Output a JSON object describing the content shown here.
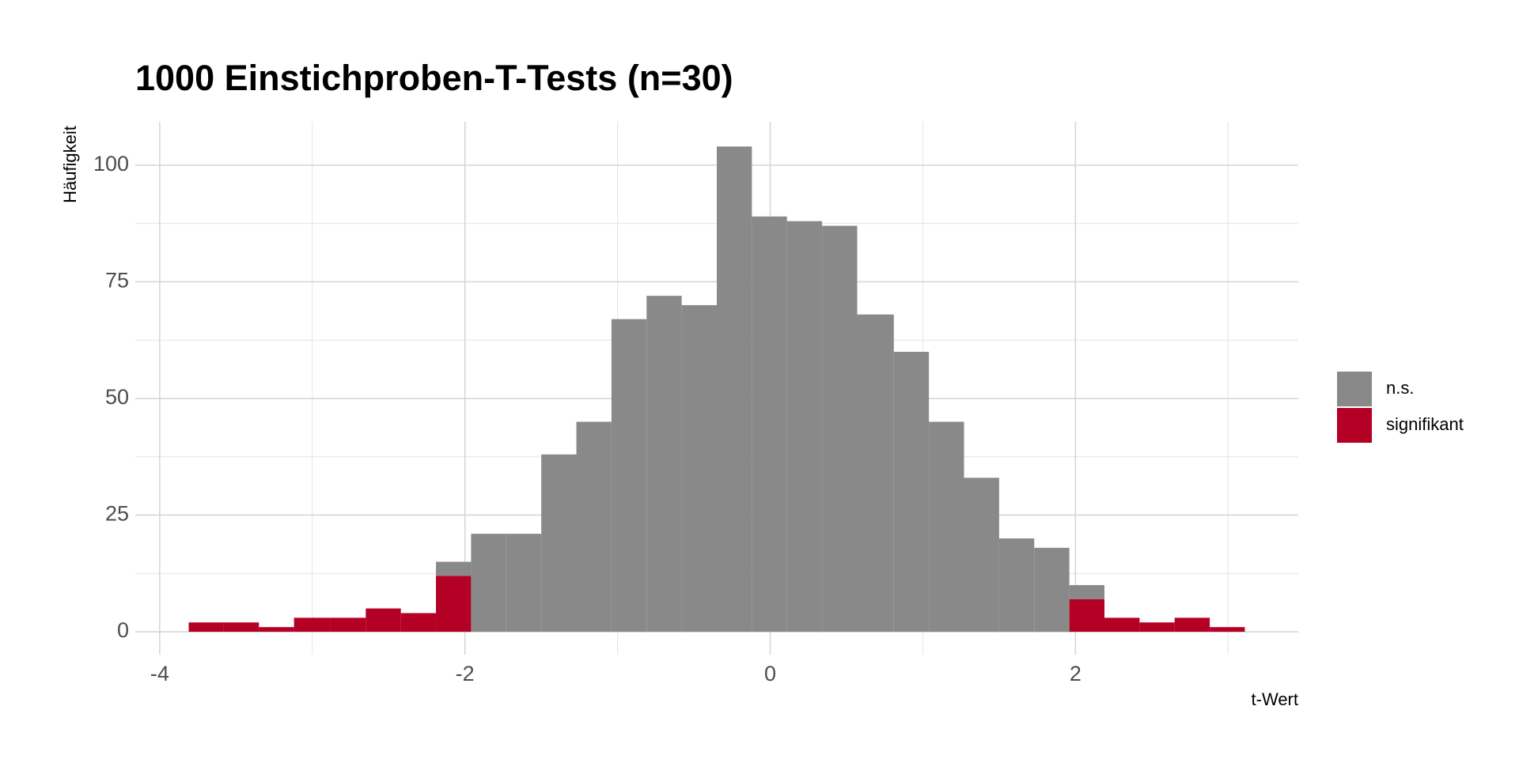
{
  "chart_data": {
    "type": "histogram",
    "title": "1000 Einstichproben-T-Tests (n=30)",
    "x_label": "t-Wert",
    "y_label": "Häufigkeit",
    "bins": [
      -3.81,
      -3.58,
      -3.35,
      -3.12,
      -2.88,
      -2.65,
      -2.42,
      -2.19,
      -1.96,
      -1.73,
      -1.5,
      -1.27,
      -1.04,
      -0.81,
      -0.58,
      -0.35,
      -0.12,
      0.11,
      0.34,
      0.57,
      0.81,
      1.04,
      1.27,
      1.5,
      1.73,
      1.96,
      2.19,
      2.42,
      2.65,
      2.88,
      3.11
    ],
    "series": [
      {
        "name": "n.s.",
        "color": "#898989",
        "values": [
          0,
          0,
          0,
          0,
          0,
          0,
          0,
          3,
          21,
          21,
          38,
          45,
          67,
          72,
          70,
          104,
          89,
          88,
          87,
          68,
          60,
          45,
          33,
          20,
          18,
          3,
          0,
          0,
          0,
          0
        ]
      },
      {
        "name": "signifikant",
        "color": "#b30024",
        "values": [
          2,
          2,
          1,
          3,
          3,
          5,
          4,
          12,
          0,
          0,
          0,
          0,
          0,
          0,
          0,
          0,
          0,
          0,
          0,
          0,
          0,
          0,
          0,
          0,
          0,
          7,
          3,
          2,
          3,
          1
        ]
      }
    ],
    "stacked": true,
    "xlim": [
      -4.16,
      3.46
    ],
    "ylim": [
      -4.9,
      109.3
    ],
    "xticks": [
      -4,
      -2,
      0,
      2
    ],
    "yticks": [
      0,
      25,
      50,
      75,
      100
    ],
    "xminor": [
      -3,
      -1,
      1,
      3
    ],
    "yminor": [
      12.5,
      37.5,
      62.5,
      87.5
    ],
    "grid": true,
    "legend": "right"
  }
}
